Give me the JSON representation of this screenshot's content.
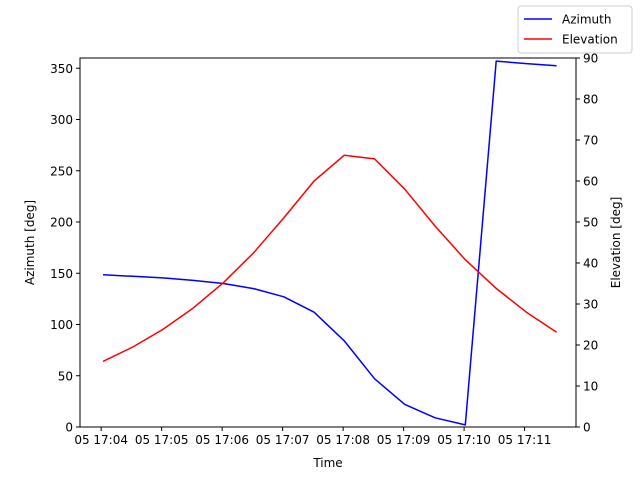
{
  "chart_data": {
    "type": "line",
    "xlabel": "Time",
    "ylabel_left": "Azimuth [deg]",
    "ylabel_right": "Elevation [deg]",
    "x_tick_labels": [
      "05 17:04",
      "05 17:05",
      "05 17:06",
      "05 17:07",
      "05 17:08",
      "05 17:09",
      "05 17:10",
      "05 17:11"
    ],
    "x_tick_minutes": [
      4,
      5,
      6,
      7,
      8,
      9,
      10,
      11
    ],
    "xlim_minutes": [
      3.65,
      11.85
    ],
    "ylim_left": [
      0,
      360
    ],
    "ylim_right": [
      0,
      90
    ],
    "yticks_left": [
      0,
      50,
      100,
      150,
      200,
      250,
      300,
      350
    ],
    "yticks_right": [
      0,
      10,
      20,
      30,
      40,
      50,
      60,
      70,
      80,
      90
    ],
    "legend": "top-right",
    "grid": false,
    "series": [
      {
        "name": "Azimuth",
        "axis": "left",
        "color": "#0000ff",
        "x_minutes": [
          4.03,
          4.52,
          5.02,
          5.52,
          6.02,
          6.52,
          7.02,
          7.52,
          8.02,
          8.52,
          9.02,
          9.52,
          10.02,
          10.53,
          11.03,
          11.53
        ],
        "values": [
          148.5,
          147,
          145.5,
          143,
          140,
          135,
          127,
          112,
          84,
          47,
          22,
          9,
          2,
          357,
          354.5,
          352.5
        ]
      },
      {
        "name": "Elevation",
        "axis": "right",
        "color": "#ff0000",
        "x_minutes": [
          4.03,
          4.52,
          5.02,
          5.52,
          6.02,
          6.52,
          7.02,
          7.52,
          8.02,
          8.52,
          9.02,
          9.52,
          10.02,
          10.53,
          11.03,
          11.53
        ],
        "values": [
          16,
          19.5,
          23.8,
          29,
          35.2,
          42.5,
          51,
          60,
          66.3,
          65.4,
          58,
          49,
          40.8,
          33.8,
          28,
          23.1
        ]
      }
    ]
  }
}
